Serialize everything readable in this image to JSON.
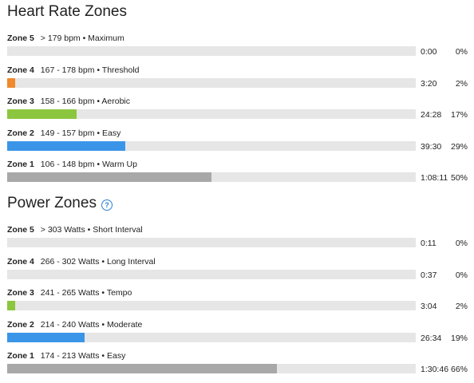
{
  "heart_rate": {
    "title": "Heart Rate Zones",
    "zones": [
      {
        "name": "Zone 5",
        "range": "> 179 bpm • Maximum",
        "time": "0:00",
        "percent": "0%",
        "fraction": 0.0,
        "color": "#f08a2c"
      },
      {
        "name": "Zone 4",
        "range": "167 - 178 bpm • Threshold",
        "time": "3:20",
        "percent": "2%",
        "fraction": 0.02,
        "color": "#f08a2c"
      },
      {
        "name": "Zone 3",
        "range": "158 - 166 bpm • Aerobic",
        "time": "24:28",
        "percent": "17%",
        "fraction": 0.17,
        "color": "#8cc63e"
      },
      {
        "name": "Zone 2",
        "range": "149 - 157 bpm • Easy",
        "time": "39:30",
        "percent": "29%",
        "fraction": 0.29,
        "color": "#3a95e8"
      },
      {
        "name": "Zone 1",
        "range": "106 - 148 bpm • Warm Up",
        "time": "1:08:11",
        "percent": "50%",
        "fraction": 0.5,
        "color": "#a8a8a8"
      }
    ]
  },
  "power": {
    "title": "Power Zones",
    "help_icon": "question-circle-icon",
    "zones": [
      {
        "name": "Zone 5",
        "range": "> 303 Watts • Short Interval",
        "time": "0:11",
        "percent": "0%",
        "fraction": 0.0,
        "color": "#f08a2c"
      },
      {
        "name": "Zone 4",
        "range": "266 - 302 Watts • Long Interval",
        "time": "0:37",
        "percent": "0%",
        "fraction": 0.0,
        "color": "#f08a2c"
      },
      {
        "name": "Zone 3",
        "range": "241 - 265 Watts • Tempo",
        "time": "3:04",
        "percent": "2%",
        "fraction": 0.02,
        "color": "#8cc63e"
      },
      {
        "name": "Zone 2",
        "range": "214 - 240 Watts • Moderate",
        "time": "26:34",
        "percent": "19%",
        "fraction": 0.19,
        "color": "#3a95e8"
      },
      {
        "name": "Zone 1",
        "range": "174 - 213 Watts • Easy",
        "time": "1:30:46",
        "percent": "66%",
        "fraction": 0.66,
        "color": "#a8a8a8"
      }
    ]
  }
}
